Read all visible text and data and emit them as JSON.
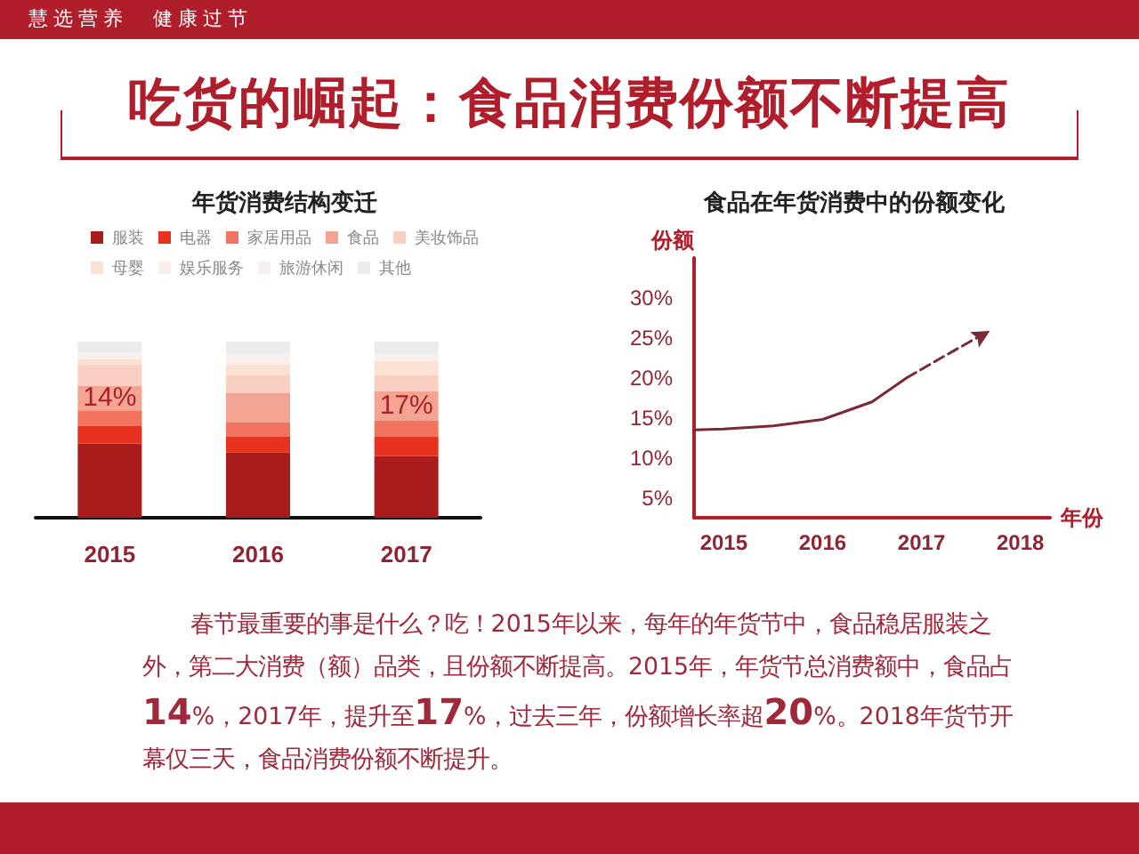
{
  "chart_data": [
    {
      "type": "bar",
      "title": "年货消费结构变迁",
      "annotations": [
        "慧选营养　健康过节",
        "吃货的崛起：食品消费份额不断提高",
        "春节最重要的事是什么？吃！2015年以来，每年的年货节中，食品稳居服装之外，第二大消费（额）品类，且份额不断提高。2015年，年货节总消费额中，食品占14%，2017年，提升至17%，过去三年，份额增长率超20%。2018年货节开幕仅三天，食品消费份额不断提升。"
      ],
      "categories": [
        "2015",
        "2016",
        "2017"
      ],
      "stacked": true,
      "legend": "top",
      "grid": false,
      "series": [
        {
          "name": "服装",
          "color": "#a81c1c",
          "values": [
            42,
            37,
            35
          ]
        },
        {
          "name": "电器",
          "color": "#e8311f",
          "values": [
            10,
            9,
            11
          ]
        },
        {
          "name": "家居用品",
          "color": "#f2735e",
          "values": [
            9,
            8,
            9
          ]
        },
        {
          "name": "食品",
          "color": "#f4a592",
          "values": [
            14,
            17,
            17
          ],
          "value_labels": [
            "14%",
            null,
            "17%"
          ]
        },
        {
          "name": "美妆饰品",
          "color": "#f9cfc3",
          "values": [
            12,
            10,
            9
          ]
        },
        {
          "name": "母婴",
          "color": "#fbe0d4",
          "values": [
            3,
            6,
            8
          ]
        },
        {
          "name": "娱乐服务",
          "color": "#fbeeea",
          "values": [
            2,
            3,
            2
          ]
        },
        {
          "name": "旅游休闲",
          "color": "#f5efef",
          "values": [
            2,
            3,
            2
          ]
        },
        {
          "name": "其他",
          "color": "#ececec",
          "values": [
            6,
            7,
            7
          ]
        }
      ]
    },
    {
      "type": "line",
      "title": "食品在年货消费中的份额变化",
      "xlabel": "年份",
      "ylabel": "份额",
      "grid": false,
      "legend": false,
      "marker": "none",
      "xlim": [
        2014.7,
        2018.3
      ],
      "xticks": [
        2015,
        2016,
        2017,
        2018
      ],
      "ylim": [
        2.5,
        35
      ],
      "yticks": [
        {
          "value": 5,
          "label": "5%"
        },
        {
          "value": 10,
          "label": "10%"
        },
        {
          "value": 15,
          "label": "15%"
        },
        {
          "value": 20,
          "label": "20%"
        },
        {
          "value": 25,
          "label": "25%"
        },
        {
          "value": 30,
          "label": "30%"
        }
      ],
      "series": [
        {
          "color": "#7a2a35",
          "line_style": "solid",
          "x": [
            2014.7,
            2015,
            2015.5,
            2016,
            2016.5,
            2016.85
          ],
          "values": [
            13.5,
            13.6,
            14,
            14.8,
            17,
            20
          ]
        },
        {
          "color": "#7a2a35",
          "line_style": "dashed",
          "x": [
            2016.85,
            2017.2,
            2017.6
          ],
          "values": [
            20,
            22.5,
            25.3
          ]
        }
      ]
    }
  ]
}
